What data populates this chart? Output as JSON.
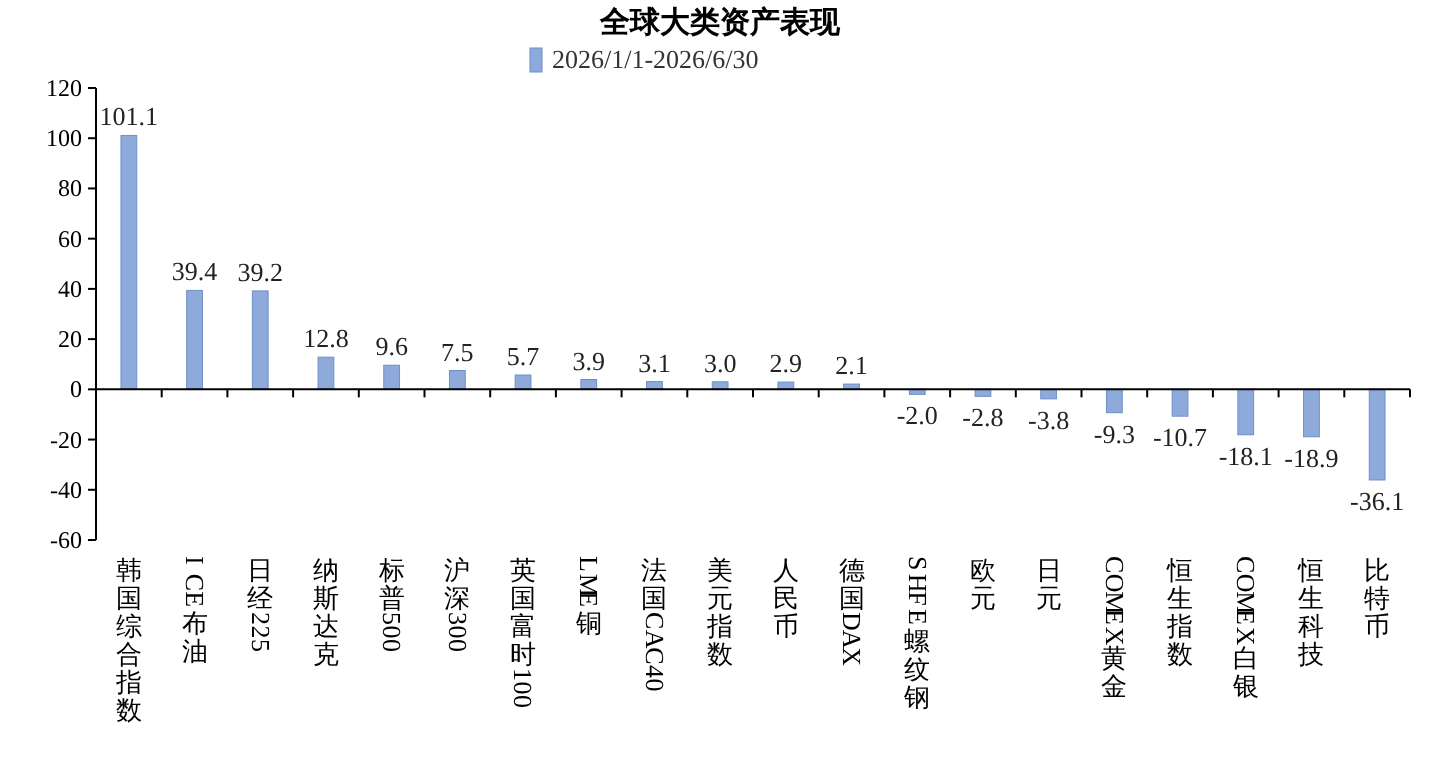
{
  "chart_data": {
    "type": "bar",
    "title": "全球大类资产表现",
    "categories": [
      "韩国综合指数",
      "ICE布油",
      "日经225",
      "纳斯达克",
      "标普500",
      "沪深300",
      "英国富时100",
      "LME铜",
      "法国CAC40",
      "美元指数",
      "人民币",
      "德国DAX",
      "SHFE螺纹钢",
      "欧元",
      "日元",
      "COMEX黄金",
      "恒生指数",
      "COMEX白银",
      "恒生科技",
      "比特币"
    ],
    "series": [
      {
        "name": "2026/1/1-2026/6/30",
        "color": "#8eaadb",
        "values": [
          101.1,
          39.4,
          39.2,
          12.8,
          9.6,
          7.5,
          5.7,
          3.9,
          3.1,
          3.0,
          2.9,
          2.1,
          -2.0,
          -2.8,
          -3.8,
          -9.3,
          -10.7,
          -18.1,
          -18.9,
          -36.1
        ]
      }
    ],
    "ylim": [
      -60,
      120
    ],
    "yticks": [
      -60,
      -40,
      -20,
      0,
      20,
      40,
      60,
      80,
      100,
      120
    ],
    "value_labels": [
      "101.1",
      "39.4",
      "39.2",
      "12.8",
      "9.6",
      "7.5",
      "5.7",
      "3.9",
      "3.1",
      "3.0",
      "2.9",
      "2.1",
      "-2.0",
      "-2.8",
      "-3.8",
      "-9.3",
      "-10.7",
      "-18.1",
      "-18.9",
      "-36.1"
    ],
    "legend": "top"
  }
}
